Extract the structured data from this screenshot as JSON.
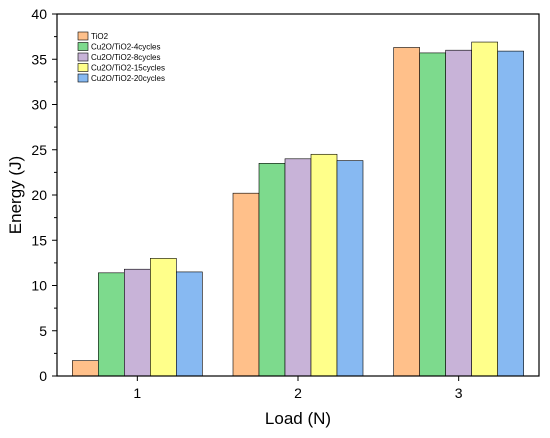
{
  "chart_data": {
    "type": "bar",
    "categories": [
      "1",
      "2",
      "3"
    ],
    "series": [
      {
        "name": "TiO2",
        "color": "#FFC08A",
        "values": [
          1.7,
          20.2,
          36.3
        ]
      },
      {
        "name": "Cu2O/TiO2-4cycles",
        "color": "#7DDA8D",
        "values": [
          11.4,
          23.5,
          35.7
        ]
      },
      {
        "name": "Cu2O/TiO2-8cycles",
        "color": "#C8B3D8",
        "values": [
          11.8,
          24.0,
          36.0
        ]
      },
      {
        "name": "Cu2O/TiO2-15cycles",
        "color": "#FFFF8A",
        "values": [
          13.0,
          24.5,
          36.9
        ]
      },
      {
        "name": "Cu2O/TiO2-20cycles",
        "color": "#87B9F2",
        "values": [
          11.5,
          23.8,
          35.9
        ]
      }
    ],
    "xlabel": "Load (N)",
    "ylabel": "Energy (J)",
    "ylim": [
      0,
      40
    ],
    "yticks": [
      "0",
      "5",
      "10",
      "15",
      "20",
      "25",
      "30",
      "35",
      "40"
    ],
    "grid": false,
    "legend_position": "top-left"
  }
}
